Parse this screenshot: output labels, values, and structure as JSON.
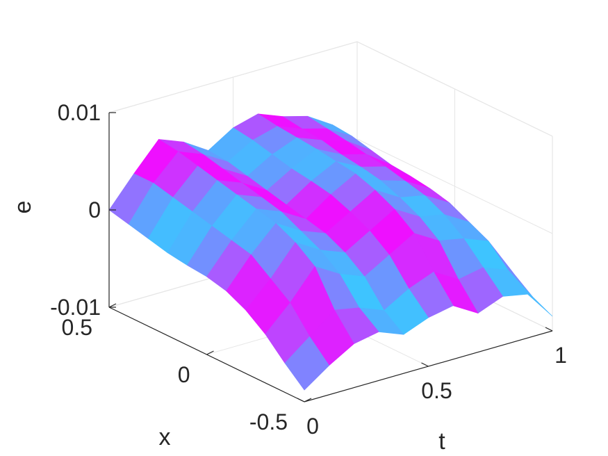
{
  "chart_data": {
    "type": "surface",
    "title": "",
    "xlabel": "t",
    "ylabel": "x",
    "zlabel": "e",
    "xlim": [
      0,
      1
    ],
    "ylim": [
      -0.5,
      0.5
    ],
    "zlim": [
      -0.01,
      0.01
    ],
    "xticks": [
      {
        "value": 0,
        "label": "0"
      },
      {
        "value": 0.5,
        "label": "0.5"
      },
      {
        "value": 1,
        "label": "1"
      }
    ],
    "yticks": [
      {
        "value": -0.5,
        "label": "-0.5"
      },
      {
        "value": 0,
        "label": "0"
      },
      {
        "value": 0.5,
        "label": "0.5"
      }
    ],
    "zticks": [
      {
        "value": -0.01,
        "label": "-0.01"
      },
      {
        "value": 0,
        "label": "0"
      },
      {
        "value": 0.01,
        "label": "0.01"
      }
    ],
    "grid": true,
    "colormap": [
      "#1ee6ff",
      "#5aa6ff",
      "#9a6bff",
      "#ee10ff"
    ],
    "surface": {
      "t": [
        0,
        0.1,
        0.2,
        0.3,
        0.4,
        0.5,
        0.6,
        0.7,
        0.8,
        0.9,
        1.0
      ],
      "x": [
        -0.5,
        -0.4,
        -0.3,
        -0.2,
        -0.1,
        0,
        0.1,
        0.2,
        0.3,
        0.4,
        0.5
      ],
      "e": [
        [
          -0.0088,
          -0.007,
          -0.0055,
          -0.005,
          -0.006,
          -0.005,
          -0.0045,
          -0.006,
          -0.005,
          -0.0055,
          -0.0085
        ],
        [
          -0.007,
          -0.005,
          -0.003,
          -0.0035,
          -0.0045,
          -0.003,
          -0.002,
          -0.0035,
          -0.003,
          -0.004,
          -0.0075
        ],
        [
          -0.005,
          -0.0025,
          0.0005,
          -0.001,
          -0.002,
          -0.0005,
          0.001,
          -0.0005,
          -0.001,
          -0.002,
          -0.006
        ],
        [
          -0.0035,
          -0.001,
          0.002,
          0.0005,
          -0.0005,
          0.001,
          0.0025,
          0.001,
          0.0005,
          -0.001,
          -0.0045
        ],
        [
          -0.0025,
          0.0005,
          0.003,
          0.0015,
          0.0005,
          0.002,
          0.0035,
          0.002,
          0.0015,
          0.0,
          -0.0035
        ],
        [
          -0.002,
          0.001,
          0.0035,
          0.0025,
          0.001,
          0.0028,
          0.0042,
          0.0028,
          0.002,
          0.0005,
          -0.003
        ],
        [
          -0.0018,
          0.0015,
          0.004,
          0.003,
          0.0015,
          0.0032,
          0.0045,
          0.0032,
          0.0025,
          0.0008,
          -0.0028
        ],
        [
          -0.0015,
          0.002,
          0.0045,
          0.0035,
          0.002,
          0.0035,
          0.0048,
          0.0035,
          0.0028,
          0.001,
          -0.0025
        ],
        [
          -0.001,
          0.0025,
          0.005,
          0.004,
          0.0025,
          0.004,
          0.005,
          0.004,
          0.0032,
          0.0015,
          -0.002
        ],
        [
          -0.0005,
          0.003,
          0.0055,
          0.0045,
          0.003,
          0.0045,
          0.0052,
          0.0042,
          0.0035,
          0.002,
          -0.0015
        ],
        [
          0.0,
          0.003,
          0.0058,
          0.0048,
          0.0032,
          0.0048,
          0.0055,
          0.0045,
          0.0038,
          0.0022,
          -0.001
        ]
      ]
    }
  }
}
